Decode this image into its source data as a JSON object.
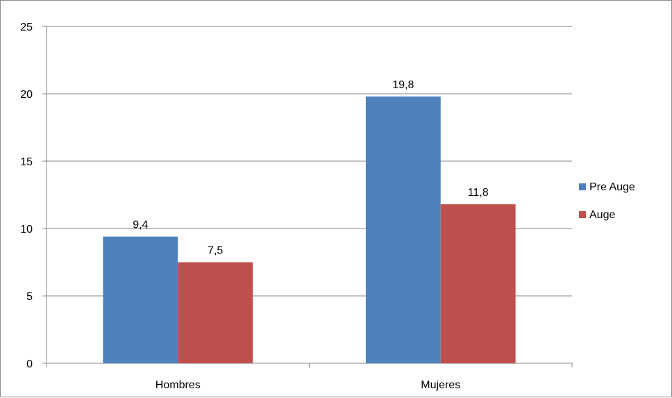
{
  "chart_data": {
    "type": "bar",
    "categories": [
      "Hombres",
      "Mujeres"
    ],
    "series": [
      {
        "name": "Pre Auge",
        "values": [
          9.4,
          19.8
        ],
        "labels": [
          "9,4",
          "19,8"
        ],
        "color": "#4f81bd"
      },
      {
        "name": "Auge",
        "values": [
          7.5,
          11.8
        ],
        "labels": [
          "7,5",
          "11,8"
        ],
        "color": "#c0504d"
      }
    ],
    "ylim": [
      0,
      25
    ],
    "yticks": [
      0,
      5,
      10,
      15,
      20,
      25
    ],
    "ytick_labels": [
      "0",
      "5",
      "10",
      "15",
      "20",
      "25"
    ],
    "grid": true,
    "legend_position": "right",
    "title": "",
    "xlabel": "",
    "ylabel": ""
  }
}
